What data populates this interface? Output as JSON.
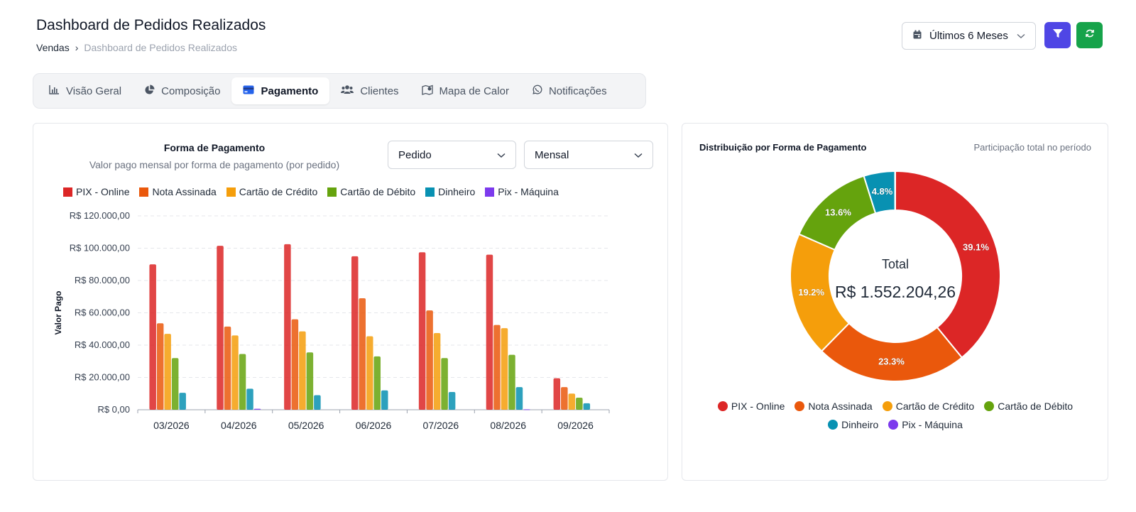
{
  "header": {
    "title": "Dashboard de Pedidos Realizados",
    "breadcrumb": {
      "root": "Vendas",
      "separator": "›",
      "current": "Dashboard de Pedidos Realizados"
    },
    "period_label": "Últimos 6 Meses"
  },
  "tabs": [
    {
      "label": "Visão Geral",
      "icon": "bar-chart-icon"
    },
    {
      "label": "Composição",
      "icon": "pie-chart-icon"
    },
    {
      "label": "Pagamento",
      "icon": "credit-card-icon",
      "active": true
    },
    {
      "label": "Clientes",
      "icon": "users-icon"
    },
    {
      "label": "Mapa de Calor",
      "icon": "map-icon"
    },
    {
      "label": "Notificações",
      "icon": "whatsapp-icon"
    }
  ],
  "colors": {
    "PIX - Online": "#dc2626",
    "Nota Assinada": "#ea580c",
    "Cartão de Crédito": "#f59e0b",
    "Cartão de Débito": "#65a30d",
    "Dinheiro": "#0891b2",
    "Pix - Máquina": "#7c3aed",
    "filter_button": "#4f46e5",
    "refresh_button": "#16a34a"
  },
  "bar_panel": {
    "title": "Forma de Pagamento",
    "subtitle": "Valor pago mensal por forma de pagamento (por pedido)",
    "measure_select": "Pedido",
    "period_select": "Mensal"
  },
  "donut_panel": {
    "title": "Distribuição por Forma de Pagamento",
    "note": "Participação total no período"
  },
  "chart_data": [
    {
      "type": "bar",
      "ylabel": "Valor Pago",
      "ylim": [
        0,
        120000
      ],
      "yticks": [
        "R$ 0,00",
        "R$ 20.000,00",
        "R$ 40.000,00",
        "R$ 60.000,00",
        "R$ 80.000,00",
        "R$ 100.000,00",
        "R$ 120.000,00"
      ],
      "grid": true,
      "legend": "top-left",
      "categories": [
        "03/2026",
        "04/2026",
        "05/2026",
        "06/2026",
        "07/2026",
        "08/2026",
        "09/2026"
      ],
      "series": [
        {
          "name": "PIX - Online",
          "values": [
            90000,
            101500,
            102500,
            95000,
            97500,
            96000,
            19500
          ]
        },
        {
          "name": "Nota Assinada",
          "values": [
            53500,
            51500,
            56000,
            69000,
            61500,
            52500,
            14000
          ]
        },
        {
          "name": "Cartão de Crédito",
          "values": [
            47000,
            46000,
            48500,
            45500,
            47500,
            50500,
            10000
          ]
        },
        {
          "name": "Cartão de Débito",
          "values": [
            32000,
            34500,
            35500,
            33000,
            32000,
            34000,
            7500
          ]
        },
        {
          "name": "Dinheiro",
          "values": [
            10500,
            13000,
            9000,
            12000,
            11000,
            14000,
            4000
          ]
        },
        {
          "name": "Pix - Máquina",
          "values": [
            0,
            600,
            0,
            0,
            0,
            300,
            0
          ]
        }
      ]
    },
    {
      "type": "pie",
      "center_label": "Total",
      "center_value": "R$ 1.552.204,26",
      "legend": "bottom",
      "slices": [
        {
          "name": "PIX - Online",
          "value": 39.1,
          "label": "39.1%"
        },
        {
          "name": "Nota Assinada",
          "value": 23.3,
          "label": "23.3%"
        },
        {
          "name": "Cartão de Crédito",
          "value": 19.2,
          "label": "19.2%"
        },
        {
          "name": "Cartão de Débito",
          "value": 13.6,
          "label": "13.6%"
        },
        {
          "name": "Dinheiro",
          "value": 4.8,
          "label": "4.8%"
        },
        {
          "name": "Pix - Máquina",
          "value": 0.05,
          "label": ""
        }
      ]
    }
  ]
}
